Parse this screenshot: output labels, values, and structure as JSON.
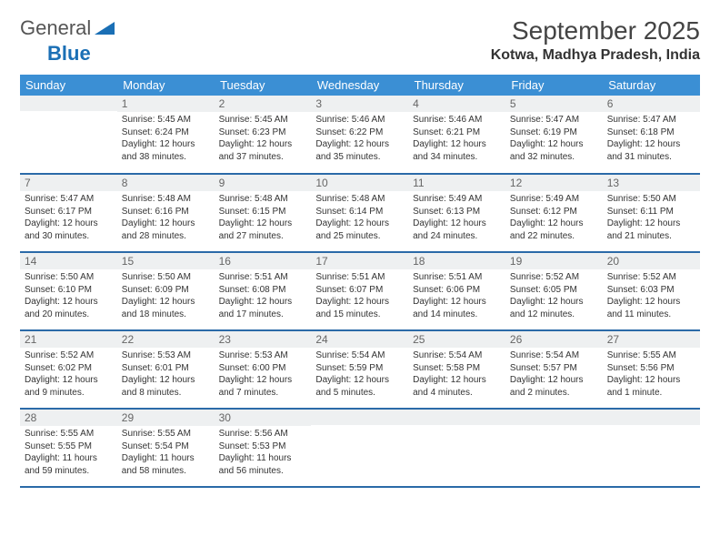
{
  "logo": {
    "text1": "General",
    "text2": "Blue"
  },
  "title": "September 2025",
  "location": "Kotwa, Madhya Pradesh, India",
  "colors": {
    "header_bg": "#3b8fd4",
    "header_text": "#ffffff",
    "daynum_bg": "#eef0f1",
    "row_border": "#2b6aa8",
    "logo_blue": "#1a6fb5"
  },
  "weekdays": [
    "Sunday",
    "Monday",
    "Tuesday",
    "Wednesday",
    "Thursday",
    "Friday",
    "Saturday"
  ],
  "weeks": [
    [
      {
        "n": "",
        "sr": "",
        "ss": "",
        "dl": ""
      },
      {
        "n": "1",
        "sr": "Sunrise: 5:45 AM",
        "ss": "Sunset: 6:24 PM",
        "dl": "Daylight: 12 hours and 38 minutes."
      },
      {
        "n": "2",
        "sr": "Sunrise: 5:45 AM",
        "ss": "Sunset: 6:23 PM",
        "dl": "Daylight: 12 hours and 37 minutes."
      },
      {
        "n": "3",
        "sr": "Sunrise: 5:46 AM",
        "ss": "Sunset: 6:22 PM",
        "dl": "Daylight: 12 hours and 35 minutes."
      },
      {
        "n": "4",
        "sr": "Sunrise: 5:46 AM",
        "ss": "Sunset: 6:21 PM",
        "dl": "Daylight: 12 hours and 34 minutes."
      },
      {
        "n": "5",
        "sr": "Sunrise: 5:47 AM",
        "ss": "Sunset: 6:19 PM",
        "dl": "Daylight: 12 hours and 32 minutes."
      },
      {
        "n": "6",
        "sr": "Sunrise: 5:47 AM",
        "ss": "Sunset: 6:18 PM",
        "dl": "Daylight: 12 hours and 31 minutes."
      }
    ],
    [
      {
        "n": "7",
        "sr": "Sunrise: 5:47 AM",
        "ss": "Sunset: 6:17 PM",
        "dl": "Daylight: 12 hours and 30 minutes."
      },
      {
        "n": "8",
        "sr": "Sunrise: 5:48 AM",
        "ss": "Sunset: 6:16 PM",
        "dl": "Daylight: 12 hours and 28 minutes."
      },
      {
        "n": "9",
        "sr": "Sunrise: 5:48 AM",
        "ss": "Sunset: 6:15 PM",
        "dl": "Daylight: 12 hours and 27 minutes."
      },
      {
        "n": "10",
        "sr": "Sunrise: 5:48 AM",
        "ss": "Sunset: 6:14 PM",
        "dl": "Daylight: 12 hours and 25 minutes."
      },
      {
        "n": "11",
        "sr": "Sunrise: 5:49 AM",
        "ss": "Sunset: 6:13 PM",
        "dl": "Daylight: 12 hours and 24 minutes."
      },
      {
        "n": "12",
        "sr": "Sunrise: 5:49 AM",
        "ss": "Sunset: 6:12 PM",
        "dl": "Daylight: 12 hours and 22 minutes."
      },
      {
        "n": "13",
        "sr": "Sunrise: 5:50 AM",
        "ss": "Sunset: 6:11 PM",
        "dl": "Daylight: 12 hours and 21 minutes."
      }
    ],
    [
      {
        "n": "14",
        "sr": "Sunrise: 5:50 AM",
        "ss": "Sunset: 6:10 PM",
        "dl": "Daylight: 12 hours and 20 minutes."
      },
      {
        "n": "15",
        "sr": "Sunrise: 5:50 AM",
        "ss": "Sunset: 6:09 PM",
        "dl": "Daylight: 12 hours and 18 minutes."
      },
      {
        "n": "16",
        "sr": "Sunrise: 5:51 AM",
        "ss": "Sunset: 6:08 PM",
        "dl": "Daylight: 12 hours and 17 minutes."
      },
      {
        "n": "17",
        "sr": "Sunrise: 5:51 AM",
        "ss": "Sunset: 6:07 PM",
        "dl": "Daylight: 12 hours and 15 minutes."
      },
      {
        "n": "18",
        "sr": "Sunrise: 5:51 AM",
        "ss": "Sunset: 6:06 PM",
        "dl": "Daylight: 12 hours and 14 minutes."
      },
      {
        "n": "19",
        "sr": "Sunrise: 5:52 AM",
        "ss": "Sunset: 6:05 PM",
        "dl": "Daylight: 12 hours and 12 minutes."
      },
      {
        "n": "20",
        "sr": "Sunrise: 5:52 AM",
        "ss": "Sunset: 6:03 PM",
        "dl": "Daylight: 12 hours and 11 minutes."
      }
    ],
    [
      {
        "n": "21",
        "sr": "Sunrise: 5:52 AM",
        "ss": "Sunset: 6:02 PM",
        "dl": "Daylight: 12 hours and 9 minutes."
      },
      {
        "n": "22",
        "sr": "Sunrise: 5:53 AM",
        "ss": "Sunset: 6:01 PM",
        "dl": "Daylight: 12 hours and 8 minutes."
      },
      {
        "n": "23",
        "sr": "Sunrise: 5:53 AM",
        "ss": "Sunset: 6:00 PM",
        "dl": "Daylight: 12 hours and 7 minutes."
      },
      {
        "n": "24",
        "sr": "Sunrise: 5:54 AM",
        "ss": "Sunset: 5:59 PM",
        "dl": "Daylight: 12 hours and 5 minutes."
      },
      {
        "n": "25",
        "sr": "Sunrise: 5:54 AM",
        "ss": "Sunset: 5:58 PM",
        "dl": "Daylight: 12 hours and 4 minutes."
      },
      {
        "n": "26",
        "sr": "Sunrise: 5:54 AM",
        "ss": "Sunset: 5:57 PM",
        "dl": "Daylight: 12 hours and 2 minutes."
      },
      {
        "n": "27",
        "sr": "Sunrise: 5:55 AM",
        "ss": "Sunset: 5:56 PM",
        "dl": "Daylight: 12 hours and 1 minute."
      }
    ],
    [
      {
        "n": "28",
        "sr": "Sunrise: 5:55 AM",
        "ss": "Sunset: 5:55 PM",
        "dl": "Daylight: 11 hours and 59 minutes."
      },
      {
        "n": "29",
        "sr": "Sunrise: 5:55 AM",
        "ss": "Sunset: 5:54 PM",
        "dl": "Daylight: 11 hours and 58 minutes."
      },
      {
        "n": "30",
        "sr": "Sunrise: 5:56 AM",
        "ss": "Sunset: 5:53 PM",
        "dl": "Daylight: 11 hours and 56 minutes."
      },
      {
        "n": "",
        "sr": "",
        "ss": "",
        "dl": ""
      },
      {
        "n": "",
        "sr": "",
        "ss": "",
        "dl": ""
      },
      {
        "n": "",
        "sr": "",
        "ss": "",
        "dl": ""
      },
      {
        "n": "",
        "sr": "",
        "ss": "",
        "dl": ""
      }
    ]
  ]
}
